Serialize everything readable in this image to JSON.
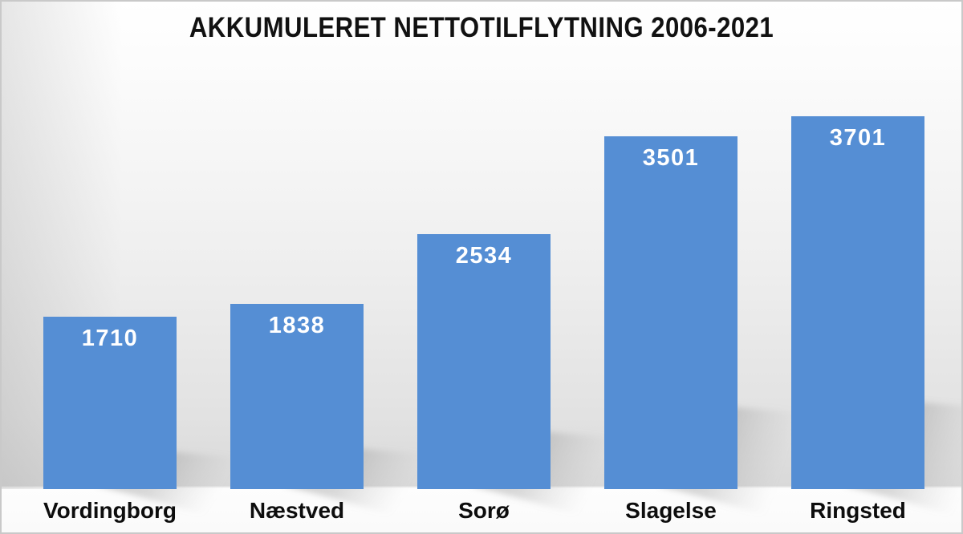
{
  "chart_data": {
    "type": "bar",
    "title": "AKKUMULERET NETTOTILFLYTNING 2006-2021",
    "categories": [
      "Vordingborg",
      "Næstved",
      "Sorø",
      "Slagelse",
      "Ringsted"
    ],
    "values": [
      1710,
      1838,
      2534,
      3501,
      3701
    ],
    "value_labels": [
      "1710",
      "1838",
      "2534",
      "3501",
      "3701"
    ],
    "xlabel": "",
    "ylabel": "",
    "ylim": [
      0,
      3950
    ],
    "grid": false,
    "legend": false,
    "value_labels_position": "inside-top",
    "bar_color": "#558ed4",
    "value_label_color": "#ffffff",
    "axis_label_color": "#0d0d0d",
    "title_color": "#111111",
    "background_top_color": "#ffffff",
    "background_floor_color": "#d9d9d9",
    "shadow_color": "#8a8a8a"
  }
}
